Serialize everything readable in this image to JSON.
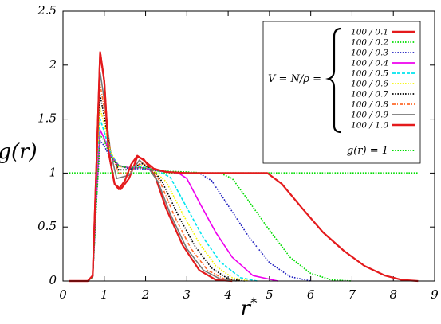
{
  "chart_data": {
    "type": "line",
    "xlabel": "r*",
    "ylabel": "g(r)",
    "xlim": [
      0,
      9
    ],
    "ylim": [
      0,
      2.5
    ],
    "xticks": [
      "0",
      "1",
      "2",
      "3",
      "4",
      "5",
      "6",
      "7",
      "8",
      "9"
    ],
    "yticks": [
      "0",
      "0.5",
      "1",
      "1.5",
      "2",
      "2.5"
    ],
    "grid": false,
    "legend_position": "top-right",
    "legend_group_label": "V = N/ρ =",
    "series": [
      {
        "name": "100 / 0.1",
        "color": "#e41a1c",
        "dash": "solid",
        "x": [
          0.15,
          0.6,
          0.72,
          0.82,
          0.9,
          1.0,
          1.1,
          1.25,
          1.35,
          1.5,
          1.65,
          1.8,
          1.95,
          2.2,
          2.5,
          3.0,
          3.5,
          4.0,
          4.5,
          4.95,
          5.3,
          5.8,
          6.3,
          6.8,
          7.3,
          7.8,
          8.2,
          8.6
        ],
        "y": [
          0.0,
          0.0,
          0.05,
          1.2,
          2.12,
          1.85,
          1.2,
          0.9,
          0.85,
          0.93,
          1.08,
          1.16,
          1.12,
          1.04,
          1.01,
          1.0,
          1.0,
          1.0,
          1.0,
          1.0,
          0.9,
          0.67,
          0.45,
          0.28,
          0.14,
          0.05,
          0.01,
          0.0
        ]
      },
      {
        "name": "100 / 0.2",
        "color": "#00dd00",
        "dash": "dotted",
        "x": [
          0.15,
          0.6,
          0.72,
          0.82,
          0.9,
          1.0,
          1.15,
          1.35,
          1.6,
          1.9,
          2.3,
          3.0,
          3.5,
          3.8,
          4.1,
          4.5,
          5.0,
          5.5,
          6.0,
          6.5,
          7.0
        ],
        "y": [
          0.0,
          0.0,
          0.04,
          0.8,
          1.35,
          1.3,
          1.15,
          1.07,
          1.05,
          1.05,
          1.02,
          1.01,
          1.0,
          1.0,
          0.95,
          0.74,
          0.47,
          0.22,
          0.07,
          0.01,
          0.0
        ]
      },
      {
        "name": "100 / 0.3",
        "color": "#1f1fbf",
        "dash": "dotted",
        "x": [
          0.15,
          0.6,
          0.72,
          0.82,
          0.9,
          1.0,
          1.15,
          1.35,
          1.6,
          1.9,
          2.3,
          2.8,
          3.3,
          3.6,
          4.0,
          4.5,
          5.0,
          5.5,
          6.0
        ],
        "y": [
          0.0,
          0.0,
          0.04,
          0.8,
          1.3,
          1.25,
          1.14,
          1.07,
          1.04,
          1.04,
          1.02,
          1.01,
          1.0,
          0.93,
          0.7,
          0.41,
          0.17,
          0.04,
          0.0
        ]
      },
      {
        "name": "100 / 0.4",
        "color": "#ee00ee",
        "dash": "solid",
        "x": [
          0.15,
          0.6,
          0.72,
          0.82,
          0.9,
          1.0,
          1.15,
          1.35,
          1.6,
          1.9,
          2.3,
          2.8,
          3.0,
          3.3,
          3.7,
          4.1,
          4.6,
          5.2
        ],
        "y": [
          0.0,
          0.0,
          0.04,
          0.85,
          1.4,
          1.32,
          1.16,
          1.07,
          1.05,
          1.05,
          1.02,
          1.0,
          0.95,
          0.73,
          0.45,
          0.22,
          0.05,
          0.0
        ]
      },
      {
        "name": "100 / 0.5",
        "color": "#00e5ee",
        "dash": "dashed",
        "x": [
          0.15,
          0.6,
          0.72,
          0.82,
          0.9,
          1.0,
          1.15,
          1.35,
          1.6,
          1.9,
          2.3,
          2.6,
          3.0,
          3.4,
          3.8,
          4.3,
          4.7
        ],
        "y": [
          0.0,
          0.0,
          0.04,
          0.9,
          1.5,
          1.38,
          1.18,
          1.07,
          1.05,
          1.06,
          1.02,
          0.96,
          0.68,
          0.4,
          0.18,
          0.03,
          0.0
        ]
      },
      {
        "name": "100 / 0.6",
        "color": "#f5f500",
        "dash": "dotted",
        "x": [
          0.15,
          0.6,
          0.72,
          0.82,
          0.9,
          1.0,
          1.15,
          1.35,
          1.6,
          1.9,
          2.2,
          2.5,
          2.9,
          3.3,
          3.7,
          4.1,
          4.5
        ],
        "y": [
          0.0,
          0.0,
          0.04,
          0.95,
          1.6,
          1.45,
          1.2,
          1.06,
          1.05,
          1.07,
          1.02,
          0.92,
          0.62,
          0.35,
          0.14,
          0.03,
          0.0
        ]
      },
      {
        "name": "100 / 0.7",
        "color": "#000000",
        "dash": "dotted",
        "x": [
          0.15,
          0.6,
          0.72,
          0.82,
          0.9,
          1.0,
          1.15,
          1.35,
          1.6,
          1.9,
          2.2,
          2.4,
          2.8,
          3.2,
          3.6,
          4.0,
          4.4
        ],
        "y": [
          0.0,
          0.0,
          0.04,
          1.0,
          1.72,
          1.52,
          1.2,
          1.03,
          1.03,
          1.09,
          1.02,
          0.92,
          0.6,
          0.32,
          0.12,
          0.02,
          0.0
        ]
      },
      {
        "name": "100 / 0.8",
        "color": "#ff6a2a",
        "dash": "dashdot",
        "x": [
          0.15,
          0.6,
          0.72,
          0.82,
          0.9,
          1.0,
          1.15,
          1.35,
          1.6,
          1.9,
          2.2,
          2.35,
          2.7,
          3.1,
          3.5,
          3.9,
          4.3
        ],
        "y": [
          0.0,
          0.0,
          0.04,
          1.05,
          1.82,
          1.6,
          1.2,
          1.0,
          1.0,
          1.1,
          1.02,
          0.92,
          0.6,
          0.3,
          0.1,
          0.02,
          0.0
        ]
      },
      {
        "name": "100 / 0.9",
        "color": "#777777",
        "dash": "solid",
        "x": [
          0.15,
          0.6,
          0.72,
          0.82,
          0.9,
          1.0,
          1.15,
          1.3,
          1.6,
          1.85,
          2.1,
          2.3,
          2.6,
          3.0,
          3.4,
          3.8,
          4.2
        ],
        "y": [
          0.0,
          0.0,
          0.04,
          1.1,
          1.93,
          1.68,
          1.2,
          0.95,
          0.98,
          1.12,
          1.03,
          0.92,
          0.62,
          0.3,
          0.1,
          0.02,
          0.0
        ]
      },
      {
        "name": "100 / 1.0",
        "color": "#e41a1c",
        "dash": "solid",
        "x": [
          0.15,
          0.6,
          0.72,
          0.82,
          0.9,
          1.0,
          1.1,
          1.25,
          1.4,
          1.6,
          1.8,
          1.95,
          2.1,
          2.25,
          2.5,
          2.9,
          3.3,
          3.7,
          4.1
        ],
        "y": [
          0.0,
          0.0,
          0.05,
          1.2,
          2.12,
          1.85,
          1.2,
          0.9,
          0.85,
          0.95,
          1.15,
          1.13,
          1.05,
          0.95,
          0.67,
          0.33,
          0.1,
          0.01,
          0.0
        ]
      }
    ],
    "reference_line": {
      "name": "g(r) = 1",
      "color": "#00dd00",
      "dash": "dotted",
      "y": 1,
      "x_range": [
        0.15,
        8.6
      ]
    }
  }
}
